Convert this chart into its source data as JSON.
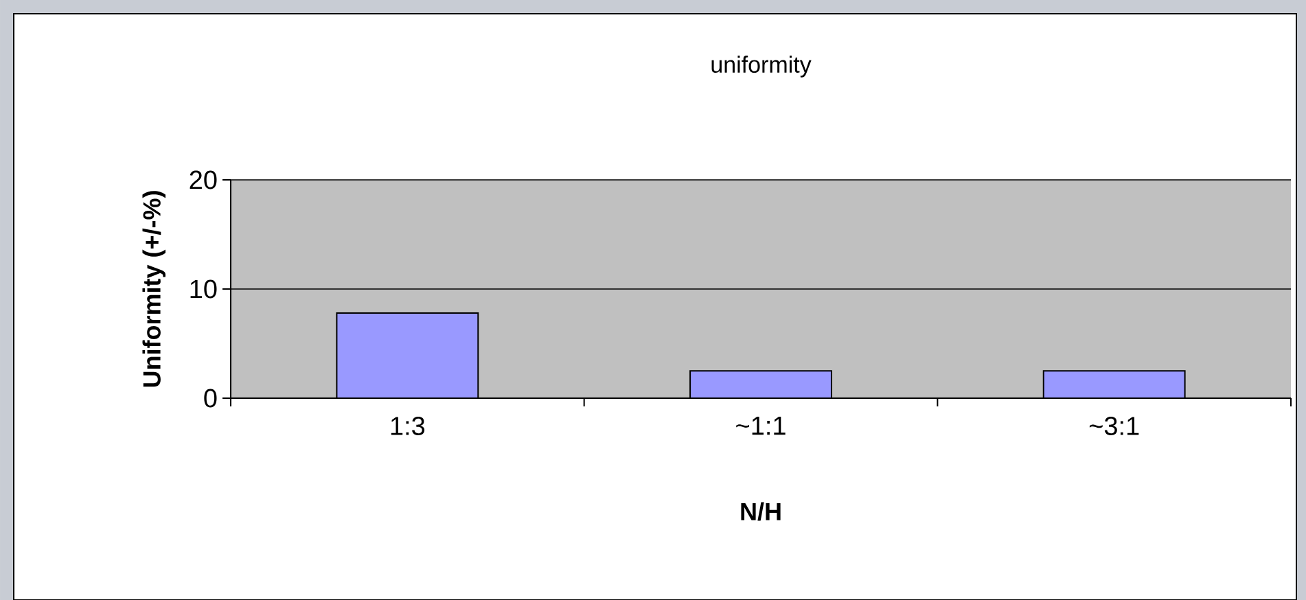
{
  "chart_data": {
    "type": "bar",
    "title": "uniformity",
    "xlabel": "N/H",
    "ylabel": "Uniformity (+/-%)",
    "categories": [
      "1:3",
      "~1:1",
      "~3:1"
    ],
    "values": [
      7.8,
      2.5,
      2.5
    ],
    "color": "#9999ff",
    "ylim": [
      0,
      20
    ],
    "yticks": [
      0,
      10,
      20
    ],
    "grid": "y"
  }
}
